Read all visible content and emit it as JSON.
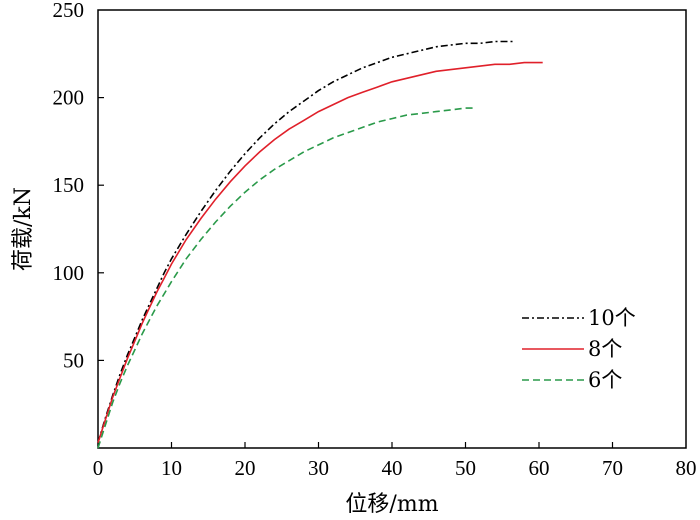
{
  "chart_data": {
    "type": "line",
    "title": "",
    "xlabel": "位移/mm",
    "ylabel": "荷载/kN",
    "xlim": [
      0,
      80
    ],
    "ylim": [
      0,
      250
    ],
    "xticks": [
      0,
      10,
      20,
      30,
      40,
      50,
      60,
      70,
      80
    ],
    "xtick_labels": [
      "0",
      "10",
      "20",
      "30",
      "40",
      "50",
      "60",
      "70",
      "80"
    ],
    "yticks": [
      50,
      100,
      150,
      200,
      250
    ],
    "ytick_labels": [
      "50",
      "100",
      "150",
      "200",
      "250"
    ],
    "grid": false,
    "legend_position": "center-right",
    "series": [
      {
        "name": "10个",
        "color": "#000000",
        "style": "dash-dot",
        "x": [
          0,
          1,
          2,
          3,
          4,
          5,
          6,
          7,
          8,
          9,
          10,
          12,
          14,
          16,
          18,
          20,
          22,
          24,
          26,
          28,
          30,
          32,
          34,
          36,
          38,
          40,
          42,
          44,
          46,
          48,
          50,
          52,
          54,
          56.5
        ],
        "y": [
          3,
          17,
          30,
          42,
          53,
          63,
          73,
          82,
          91,
          100,
          108,
          122,
          135,
          147,
          158,
          168,
          177,
          185,
          192,
          198,
          204,
          209,
          213,
          217,
          220,
          223,
          225,
          227,
          229,
          230,
          231,
          231,
          232,
          232
        ]
      },
      {
        "name": "8个",
        "color": "#e0202a",
        "style": "solid",
        "x": [
          0,
          1,
          2,
          3,
          4,
          5,
          6,
          7,
          8,
          9,
          10,
          12,
          14,
          16,
          18,
          20,
          22,
          24,
          26,
          28,
          30,
          32,
          34,
          36,
          38,
          40,
          42,
          44,
          46,
          48,
          50,
          52,
          54,
          56,
          58,
          60.5
        ],
        "y": [
          3,
          16,
          29,
          40,
          51,
          61,
          71,
          80,
          89,
          97,
          105,
          119,
          131,
          142,
          152,
          161,
          169,
          176,
          182,
          187,
          192,
          196,
          200,
          203,
          206,
          209,
          211,
          213,
          215,
          216,
          217,
          218,
          219,
          219,
          220,
          220
        ]
      },
      {
        "name": "6个",
        "color": "#2a9a4a",
        "style": "dashed",
        "x": [
          0,
          1,
          2,
          3,
          4,
          5,
          6,
          7,
          8,
          9,
          10,
          12,
          14,
          16,
          18,
          20,
          22,
          24,
          26,
          28,
          30,
          32,
          34,
          36,
          38,
          40,
          42,
          44,
          46,
          48,
          50,
          51.5
        ],
        "y": [
          0,
          13,
          26,
          37,
          47,
          56,
          65,
          73,
          81,
          88,
          95,
          108,
          119,
          129,
          138,
          146,
          153,
          159,
          164,
          169,
          173,
          177,
          180,
          183,
          186,
          188,
          190,
          191,
          192,
          193,
          194,
          194
        ]
      }
    ]
  }
}
